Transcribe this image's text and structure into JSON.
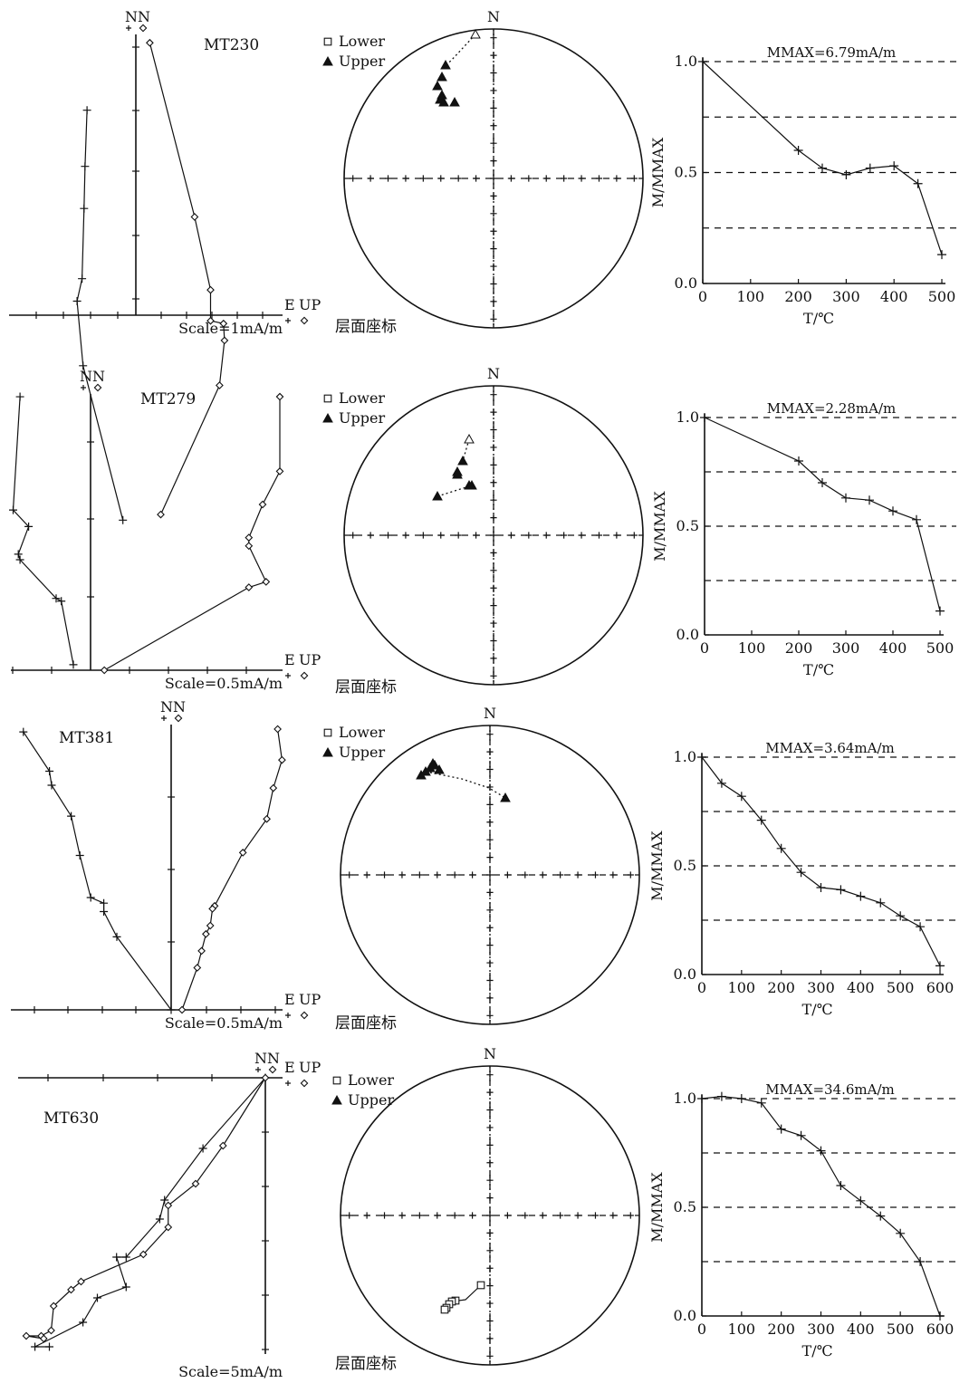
{
  "panels": [
    {
      "sample": "MT230",
      "zijderveld": {
        "labels": {
          "n_h": "N",
          "n_v": "N",
          "e": "E",
          "up": "UP",
          "scale": "Scale=1mA/m"
        },
        "horizontal": [
          [
            -4.9,
            0.73
          ],
          [
            -5.1,
            0.53
          ],
          [
            -5.2,
            0.38
          ],
          [
            -5.4,
            0.13
          ],
          [
            -5.9,
            0.05
          ],
          [
            -5.3,
            -0.18
          ],
          [
            -1.3,
            -0.73
          ]
        ],
        "vertical": [
          [
            1.4,
            0.97
          ],
          [
            5.9,
            0.35
          ],
          [
            7.5,
            0.09
          ],
          [
            7.5,
            -0.02
          ],
          [
            8.8,
            -0.03
          ],
          [
            8.9,
            -0.09
          ],
          [
            8.4,
            -0.25
          ],
          [
            2.5,
            -0.71
          ]
        ]
      },
      "stereonet": {
        "north": "N",
        "legend_lower": "Lower",
        "legend_upper": "Upper",
        "caption": "层面座标"
      },
      "demag": {
        "mmax": "MMAX=6.79mA/m",
        "xlabel": "T/℃",
        "ylabel": "M/MMAX",
        "xticks": [
          "0",
          "100",
          "200",
          "300",
          "400",
          "500"
        ],
        "yticks": [
          "0.0",
          "0.5",
          "1.0"
        ],
        "xmax": 500,
        "t": [
          0,
          200,
          250,
          300,
          350,
          400,
          450,
          500
        ],
        "m": [
          1.0,
          0.6,
          0.52,
          0.49,
          0.52,
          0.53,
          0.45,
          0.13
        ]
      }
    },
    {
      "sample": "MT279",
      "zijderveld": {
        "labels": {
          "n_h": "N",
          "n_v": "N",
          "e": "E",
          "up": "UP",
          "scale": "Scale=0.5mA/m"
        },
        "horizontal": [
          [
            -4.1,
            0.99
          ],
          [
            -4.5,
            0.58
          ],
          [
            -3.6,
            0.52
          ],
          [
            -4.2,
            0.42
          ],
          [
            -4.1,
            0.4
          ],
          [
            -2.0,
            0.26
          ],
          [
            -1.7,
            0.25
          ],
          [
            -1.0,
            0.02
          ]
        ],
        "vertical": [
          [
            11.0,
            0.99
          ],
          [
            11.0,
            0.72
          ],
          [
            10.0,
            0.6
          ],
          [
            9.2,
            0.48
          ],
          [
            9.2,
            0.45
          ],
          [
            10.2,
            0.32
          ],
          [
            9.2,
            0.3
          ],
          [
            0.8,
            0.0
          ]
        ]
      },
      "stereonet": {
        "north": "N",
        "legend_lower": "Lower",
        "legend_upper": "Upper",
        "caption": "层面座标"
      },
      "demag": {
        "mmax": "MMAX=2.28mA/m",
        "xlabel": "T/℃",
        "ylabel": "M/MMAX",
        "xticks": [
          "0",
          "100",
          "200",
          "300",
          "400",
          "500"
        ],
        "yticks": [
          "0.0",
          "0.5",
          "1.0"
        ],
        "xmax": 500,
        "t": [
          0,
          200,
          250,
          300,
          350,
          400,
          450,
          500
        ],
        "m": [
          1.0,
          0.8,
          0.7,
          0.63,
          0.62,
          0.57,
          0.53,
          0.11
        ]
      }
    },
    {
      "sample": "MT381",
      "zijderveld": {
        "labels": {
          "n_h": "N",
          "n_v": "N",
          "e": "E",
          "up": "UP",
          "scale": "Scale=0.5mA/m"
        },
        "horizontal": [
          [
            -6.8,
            0.99
          ],
          [
            -5.6,
            0.85
          ],
          [
            -5.5,
            0.8
          ],
          [
            -4.6,
            0.69
          ],
          [
            -4.2,
            0.55
          ],
          [
            -3.7,
            0.4
          ],
          [
            -3.1,
            0.38
          ],
          [
            -3.1,
            0.35
          ],
          [
            -2.5,
            0.26
          ],
          [
            0.0,
            0.0
          ]
        ],
        "vertical": [
          [
            4.9,
            1.0
          ],
          [
            5.1,
            0.89
          ],
          [
            4.7,
            0.79
          ],
          [
            4.4,
            0.68
          ],
          [
            3.3,
            0.56
          ],
          [
            2.0,
            0.37
          ],
          [
            1.9,
            0.36
          ],
          [
            1.8,
            0.3
          ],
          [
            1.6,
            0.27
          ],
          [
            1.4,
            0.21
          ],
          [
            1.2,
            0.15
          ],
          [
            0.5,
            0.0
          ]
        ]
      },
      "stereonet": {
        "north": "N",
        "legend_lower": "Lower",
        "legend_upper": "Upper",
        "caption": "层面座标"
      },
      "demag": {
        "mmax": "MMAX=3.64mA/m",
        "xlabel": "T/℃",
        "ylabel": "M/MMAX",
        "xticks": [
          "0",
          "100",
          "200",
          "300",
          "400",
          "500",
          "600"
        ],
        "yticks": [
          "0.0",
          "0.5",
          "1.0"
        ],
        "xmax": 600,
        "t": [
          0,
          50,
          100,
          150,
          200,
          250,
          300,
          350,
          400,
          450,
          500,
          550,
          600
        ],
        "m": [
          1.0,
          0.88,
          0.82,
          0.71,
          0.58,
          0.47,
          0.4,
          0.39,
          0.36,
          0.33,
          0.27,
          0.22,
          0.04
        ]
      }
    },
    {
      "sample": "MT630",
      "zijderveld": {
        "labels": {
          "n_h": "N",
          "n_v": "N",
          "e": "E",
          "up": "UP",
          "scale": "Scale=5mA/m"
        },
        "horizontal": [
          [
            0,
            0
          ],
          [
            -1.3,
            -0.26
          ],
          [
            -2.1,
            -0.45
          ],
          [
            -2.2,
            -0.52
          ],
          [
            -2.9,
            -0.66
          ],
          [
            -3.1,
            -0.66
          ],
          [
            -2.9,
            -0.77
          ],
          [
            -3.5,
            -0.81
          ],
          [
            -3.8,
            -0.9
          ],
          [
            -4.8,
            -0.99
          ],
          [
            -4.5,
            -0.99
          ]
        ],
        "vertical": [
          [
            0,
            0
          ],
          [
            -1.7,
            -0.25
          ],
          [
            -2.8,
            -0.39
          ],
          [
            -3.9,
            -0.47
          ],
          [
            -3.9,
            -0.55
          ],
          [
            -4.9,
            -0.65
          ],
          [
            -7.4,
            -0.75
          ],
          [
            -7.8,
            -0.78
          ],
          [
            -8.5,
            -0.84
          ],
          [
            -8.6,
            -0.93
          ],
          [
            -9.0,
            -0.95
          ],
          [
            -9.6,
            -0.95
          ],
          [
            -8.9,
            -0.96
          ]
        ]
      },
      "stereonet": {
        "north": "N",
        "legend_lower": "Lower",
        "legend_upper": "Upper",
        "caption": "层面座标"
      },
      "demag": {
        "mmax": "MMAX=34.6mA/m",
        "xlabel": "T/℃",
        "ylabel": "M/MMAX",
        "xticks": [
          "0",
          "100",
          "200",
          "300",
          "400",
          "500",
          "600"
        ],
        "yticks": [
          "0.0",
          "0.5",
          "1.0"
        ],
        "xmax": 600,
        "t": [
          0,
          50,
          100,
          150,
          200,
          250,
          300,
          350,
          400,
          450,
          500,
          550,
          600
        ],
        "m": [
          1.0,
          1.01,
          1.0,
          0.98,
          0.86,
          0.83,
          0.76,
          0.6,
          0.53,
          0.46,
          0.38,
          0.25,
          0.0
        ]
      }
    }
  ],
  "chart_data": [
    {
      "type": "line",
      "title": "MMAX=6.79mA/m",
      "xlabel": "T/℃",
      "ylabel": "M/MMAX",
      "xlim": [
        0,
        500
      ],
      "ylim": [
        0,
        1
      ],
      "x": [
        0,
        200,
        250,
        300,
        350,
        400,
        450,
        500
      ],
      "series": [
        {
          "name": "MT230",
          "values": [
            1.0,
            0.6,
            0.52,
            0.49,
            0.52,
            0.53,
            0.45,
            0.13
          ]
        }
      ]
    },
    {
      "type": "line",
      "title": "MMAX=2.28mA/m",
      "xlabel": "T/℃",
      "ylabel": "M/MMAX",
      "xlim": [
        0,
        500
      ],
      "ylim": [
        0,
        1
      ],
      "x": [
        0,
        200,
        250,
        300,
        350,
        400,
        450,
        500
      ],
      "series": [
        {
          "name": "MT279",
          "values": [
            1.0,
            0.8,
            0.7,
            0.63,
            0.62,
            0.57,
            0.53,
            0.11
          ]
        }
      ]
    },
    {
      "type": "line",
      "title": "MMAX=3.64mA/m",
      "xlabel": "T/℃",
      "ylabel": "M/MMAX",
      "xlim": [
        0,
        600
      ],
      "ylim": [
        0,
        1
      ],
      "x": [
        0,
        50,
        100,
        150,
        200,
        250,
        300,
        350,
        400,
        450,
        500,
        550,
        600
      ],
      "series": [
        {
          "name": "MT381",
          "values": [
            1.0,
            0.88,
            0.82,
            0.71,
            0.58,
            0.47,
            0.4,
            0.39,
            0.36,
            0.33,
            0.27,
            0.22,
            0.04
          ]
        }
      ]
    },
    {
      "type": "line",
      "title": "MMAX=34.6mA/m",
      "xlabel": "T/℃",
      "ylabel": "M/MMAX",
      "xlim": [
        0,
        600
      ],
      "ylim": [
        0,
        1
      ],
      "x": [
        0,
        50,
        100,
        150,
        200,
        250,
        300,
        350,
        400,
        450,
        500,
        550,
        600
      ],
      "series": [
        {
          "name": "MT630",
          "values": [
            1.0,
            1.01,
            1.0,
            0.98,
            0.86,
            0.83,
            0.76,
            0.6,
            0.53,
            0.46,
            0.38,
            0.25,
            0.0
          ]
        }
      ]
    }
  ]
}
